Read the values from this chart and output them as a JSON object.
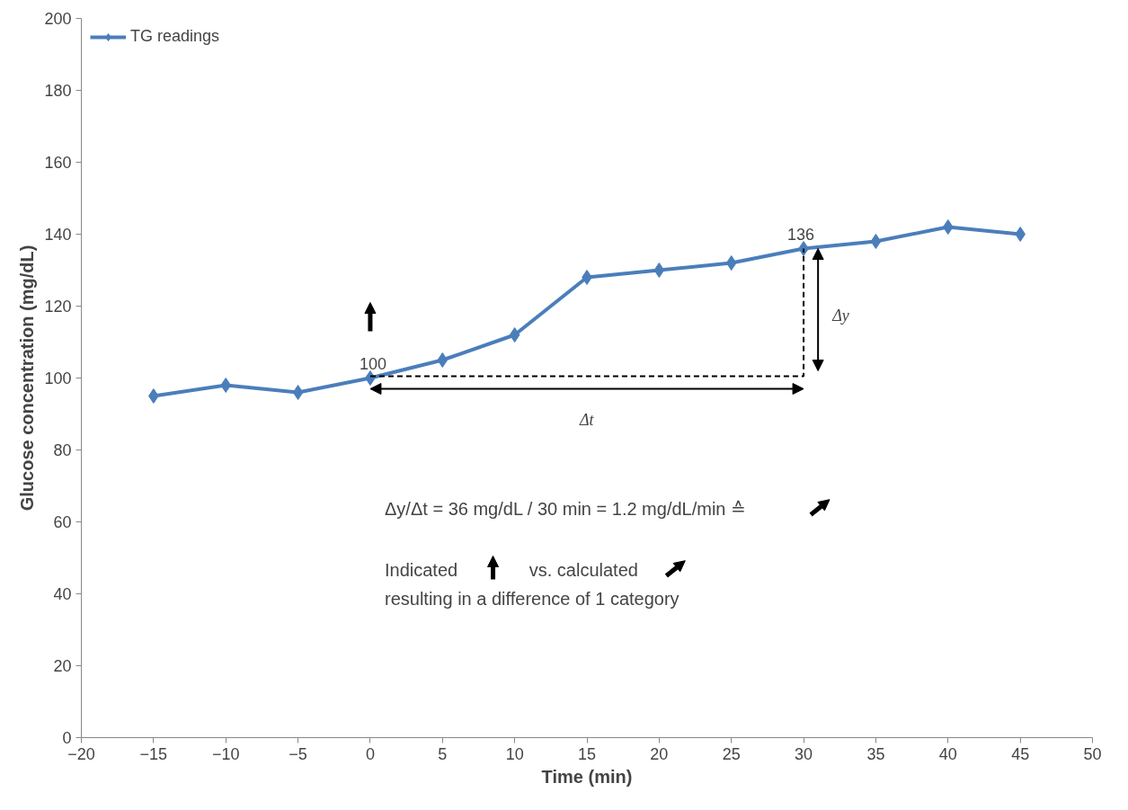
{
  "chart_data": {
    "type": "line",
    "xlabel": "Time (min)",
    "ylabel": "Glucose concentration (mg/dL)",
    "x": [
      -15,
      -10,
      -5,
      0,
      5,
      10,
      15,
      20,
      25,
      30,
      35,
      40,
      45
    ],
    "series": [
      {
        "name": "TG readings",
        "color": "#4a7ebb",
        "values": [
          95,
          98,
          96,
          100,
          105,
          112,
          128,
          130,
          132,
          136,
          138,
          142,
          140
        ]
      }
    ],
    "xlim": [
      -20,
      50
    ],
    "xticks": [
      -20,
      -15,
      -10,
      -5,
      0,
      5,
      10,
      15,
      20,
      25,
      30,
      35,
      40,
      45,
      50
    ],
    "ylim": [
      0,
      200
    ],
    "yticks": [
      0,
      20,
      40,
      60,
      80,
      100,
      120,
      140,
      160,
      180,
      200
    ],
    "marker": "diamond",
    "legend": "top left",
    "grid": false,
    "annotations": [
      {
        "text": "100",
        "x": 0,
        "y": 100
      },
      {
        "text": "136",
        "x": 30,
        "y": 136
      },
      "Δy",
      "Δt",
      "Δy/Δt = 36 mg/dL / 30 min = 1.2 mg/dL/min ≙",
      "Indicated",
      "vs. calculated",
      "resulting in a difference of 1 category"
    ]
  }
}
